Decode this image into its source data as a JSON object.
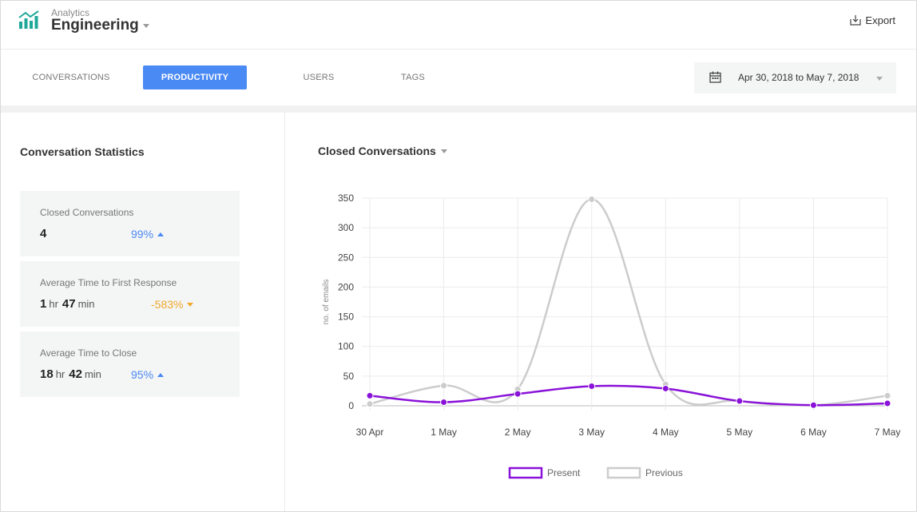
{
  "header": {
    "logo_icon": "bar-chart-logo-icon",
    "subtitle": "Analytics",
    "title": "Engineering",
    "export_label": "Export",
    "export_icon": "export-icon",
    "accent_color": "#1fa89a"
  },
  "tabs": [
    {
      "label": "CONVERSATIONS",
      "active": false
    },
    {
      "label": "PRODUCTIVITY",
      "active": true
    },
    {
      "label": "USERS",
      "active": false
    },
    {
      "label": "TAGS",
      "active": false
    }
  ],
  "date_range": {
    "icon": "calendar-icon",
    "value": "Apr 30, 2018 to May 7, 2018"
  },
  "stats": {
    "title": "Conversation Statistics",
    "cards": [
      {
        "label": "Closed Conversations",
        "value": "4",
        "change": "99%",
        "trend": "up",
        "color": "#4a8af4"
      },
      {
        "label": "Average Time to First Response",
        "hours": "1",
        "hr_unit": "hr",
        "minutes": "47",
        "min_unit": "min",
        "change": "-583%",
        "trend": "down",
        "color": "#f0a92d"
      },
      {
        "label": "Average Time to Close",
        "hours": "18",
        "hr_unit": "hr",
        "minutes": "42",
        "min_unit": "min",
        "change": "95%",
        "trend": "up",
        "color": "#4a8af4"
      }
    ]
  },
  "chart_title": "Closed Conversations",
  "chart_data": {
    "type": "line",
    "title": "Closed Conversations",
    "xlabel": "",
    "ylabel": "no. of emails",
    "categories": [
      "30 Apr",
      "1 May",
      "2 May",
      "3 May",
      "4 May",
      "5 May",
      "6 May",
      "7 May"
    ],
    "ylim": [
      0,
      350
    ],
    "yticks": [
      0,
      50,
      100,
      150,
      200,
      250,
      300,
      350
    ],
    "grid": true,
    "legend": "bottom-center",
    "series": [
      {
        "name": "Present",
        "color": "#8a12d8",
        "values": [
          17,
          6,
          20,
          33,
          29,
          8,
          1,
          4
        ]
      },
      {
        "name": "Previous",
        "color": "#cccccc",
        "values": [
          3,
          34,
          28,
          348,
          36,
          8,
          1,
          17
        ]
      }
    ]
  }
}
